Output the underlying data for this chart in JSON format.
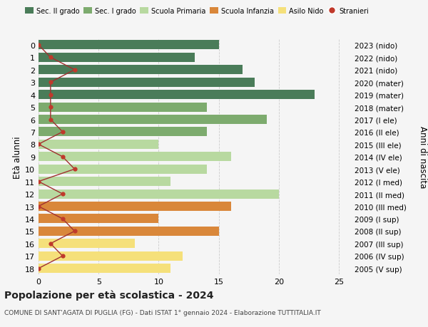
{
  "ages": [
    18,
    17,
    16,
    15,
    14,
    13,
    12,
    11,
    10,
    9,
    8,
    7,
    6,
    5,
    4,
    3,
    2,
    1,
    0
  ],
  "right_labels": [
    "2005 (V sup)",
    "2006 (IV sup)",
    "2007 (III sup)",
    "2008 (II sup)",
    "2009 (I sup)",
    "2010 (III med)",
    "2011 (II med)",
    "2012 (I med)",
    "2013 (V ele)",
    "2014 (IV ele)",
    "2015 (III ele)",
    "2016 (II ele)",
    "2017 (I ele)",
    "2018 (mater)",
    "2019 (mater)",
    "2020 (mater)",
    "2021 (nido)",
    "2022 (nido)",
    "2023 (nido)"
  ],
  "bar_values": [
    15,
    13,
    17,
    18,
    23,
    14,
    19,
    14,
    10,
    16,
    14,
    11,
    20,
    16,
    10,
    15,
    8,
    12,
    11
  ],
  "bar_colors": [
    "#4a7c59",
    "#4a7c59",
    "#4a7c59",
    "#4a7c59",
    "#4a7c59",
    "#7dab6e",
    "#7dab6e",
    "#7dab6e",
    "#b8d9a0",
    "#b8d9a0",
    "#b8d9a0",
    "#b8d9a0",
    "#b8d9a0",
    "#d9873a",
    "#d9873a",
    "#d9873a",
    "#f5e07a",
    "#f5e07a",
    "#f5e07a"
  ],
  "stranieri_values": [
    0,
    1,
    3,
    1,
    1,
    1,
    1,
    2,
    0,
    2,
    3,
    0,
    2,
    0,
    2,
    3,
    1,
    2,
    0
  ],
  "legend_labels": [
    "Sec. II grado",
    "Sec. I grado",
    "Scuola Primaria",
    "Scuola Infanzia",
    "Asilo Nido",
    "Stranieri"
  ],
  "legend_colors": [
    "#4a7c59",
    "#7dab6e",
    "#b8d9a0",
    "#d9873a",
    "#f5e07a",
    "#c0392b"
  ],
  "title": "Popolazione per età scolastica - 2024",
  "subtitle": "COMUNE DI SANT'AGATA DI PUGLIA (FG) - Dati ISTAT 1° gennaio 2024 - Elaborazione TUTTITALIA.IT",
  "ylabel_left": "Età alunni",
  "ylabel_right": "Anni di nascita",
  "xlim": [
    0,
    26
  ],
  "xticks": [
    0,
    5,
    10,
    15,
    20,
    25
  ],
  "background_color": "#f5f5f5",
  "grid_color": "#cccccc",
  "bar_height": 0.75
}
